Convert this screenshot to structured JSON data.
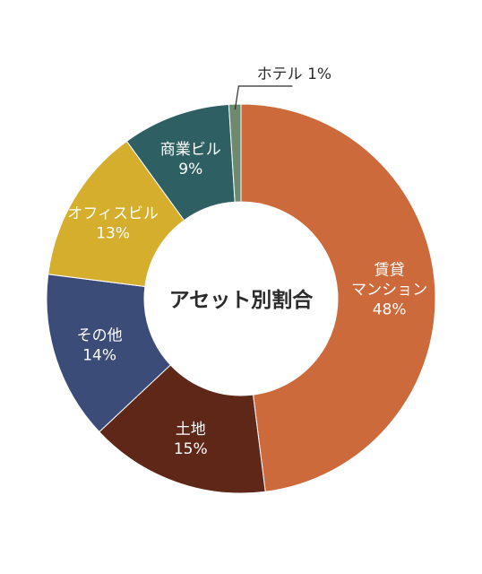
{
  "chart_data": {
    "type": "pie",
    "title": "アセット別割合",
    "slices": [
      {
        "label": [
          "賃貸",
          "マンション"
        ],
        "value": 48,
        "value_label": "48%",
        "color": "#CD6A3B"
      },
      {
        "label": [
          "土地"
        ],
        "value": 15,
        "value_label": "15%",
        "color": "#5E2717"
      },
      {
        "label": [
          "その他"
        ],
        "value": 14,
        "value_label": "14%",
        "color": "#3B4C78"
      },
      {
        "label": [
          "オフィスビル"
        ],
        "value": 13,
        "value_label": "13%",
        "color": "#D4AE2C"
      },
      {
        "label": [
          "商業ビル"
        ],
        "value": 9,
        "value_label": "9%",
        "color": "#2E5F62"
      },
      {
        "label": [
          "ホテル"
        ],
        "value": 1,
        "value_label": "1%",
        "color": "#6E8A6E",
        "callout": "ホテル 1%"
      }
    ]
  }
}
